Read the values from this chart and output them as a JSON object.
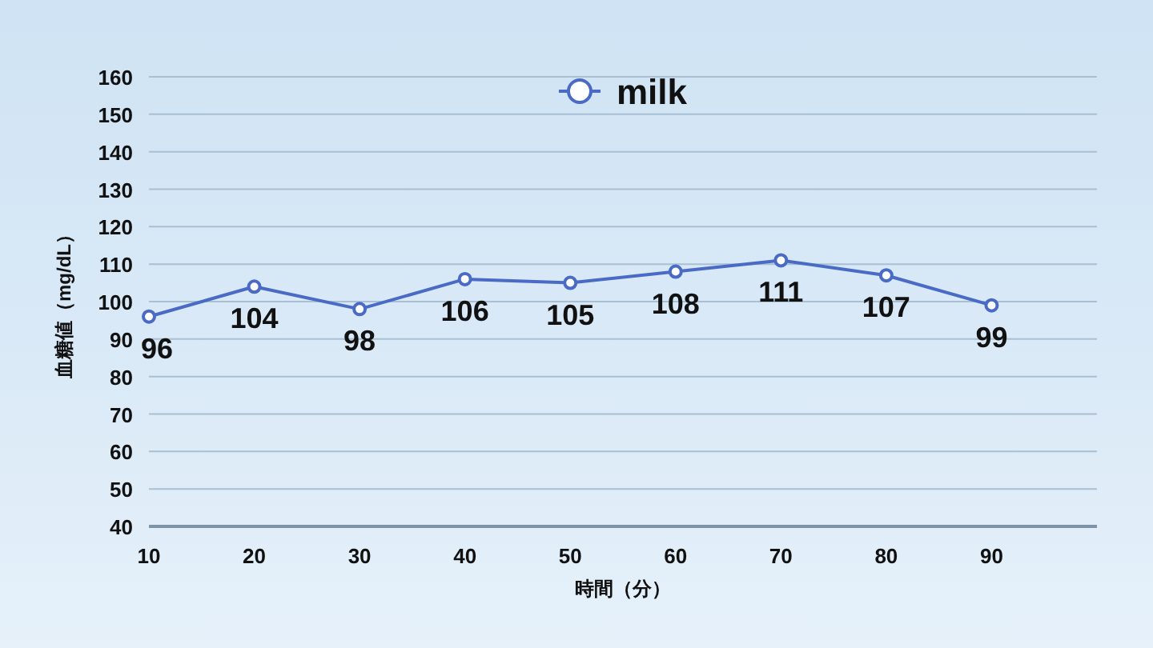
{
  "chart_data": {
    "type": "line",
    "x": [
      10,
      20,
      30,
      40,
      50,
      60,
      70,
      80,
      90
    ],
    "series": [
      {
        "name": "milk",
        "color": "#4a6bc5",
        "values": [
          96,
          104,
          98,
          106,
          105,
          108,
          111,
          107,
          99
        ]
      }
    ],
    "xlabel": "時間（分）",
    "ylabel": "血糖値（mg/dL）",
    "xlim": [
      10,
      100
    ],
    "xticks": [
      10,
      20,
      30,
      40,
      50,
      60,
      70,
      80,
      90
    ],
    "ylim": [
      40,
      160
    ],
    "yticks": [
      40,
      50,
      60,
      70,
      80,
      90,
      100,
      110,
      120,
      130,
      140,
      150,
      160
    ],
    "grid": "y",
    "legend": "top",
    "marker": "circle",
    "line_style": "solid",
    "data_labels": true
  }
}
